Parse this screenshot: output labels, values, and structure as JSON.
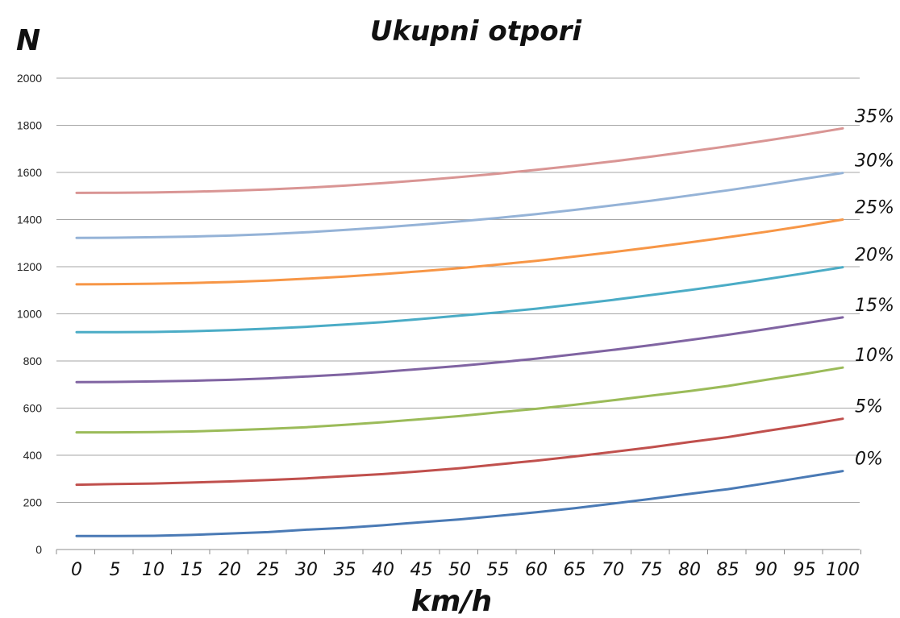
{
  "chart_data": {
    "type": "line",
    "title": "Ukupni otpori",
    "ylabel": "N",
    "xlabel": "km/h",
    "ylim": [
      0,
      2000
    ],
    "yticks": [
      0,
      200,
      400,
      600,
      800,
      1000,
      1200,
      1400,
      1600,
      1800,
      2000
    ],
    "grid": true,
    "legend": "inline labels at right end of lines",
    "x": [
      0,
      5,
      10,
      15,
      20,
      25,
      30,
      35,
      40,
      45,
      50,
      55,
      60,
      65,
      70,
      75,
      80,
      85,
      90,
      95,
      100
    ],
    "x_labels": [
      "0",
      "5",
      "10",
      "15",
      "20",
      "25",
      "30",
      "35",
      "40",
      "45",
      "50",
      "55",
      "60",
      "65",
      "70",
      "75",
      "80",
      "85",
      "90",
      "95",
      "100"
    ],
    "series": [
      {
        "name": "0%",
        "color": "#4a7ab5",
        "values": [
          57,
          57,
          58,
          62,
          68,
          74,
          84,
          92,
          103,
          116,
          128,
          143,
          158,
          175,
          195,
          215,
          236,
          256,
          281,
          307,
          333
        ]
      },
      {
        "name": "5%",
        "color": "#c0504d",
        "values": [
          275,
          278,
          280,
          284,
          289,
          295,
          302,
          311,
          320,
          332,
          345,
          361,
          377,
          395,
          414,
          434,
          456,
          477,
          503,
          528,
          555
        ]
      },
      {
        "name": "10%",
        "color": "#9bbb59",
        "values": [
          497,
          497,
          498,
          501,
          506,
          512,
          519,
          529,
          540,
          553,
          566,
          582,
          597,
          614,
          633,
          653,
          672,
          694,
          720,
          745,
          772
        ]
      },
      {
        "name": "15%",
        "color": "#8064a2",
        "values": [
          710,
          711,
          713,
          716,
          720,
          726,
          734,
          743,
          754,
          766,
          779,
          794,
          810,
          828,
          847,
          867,
          889,
          911,
          935,
          960,
          985
        ]
      },
      {
        "name": "20%",
        "color": "#4bacc6",
        "values": [
          922,
          922,
          923,
          926,
          931,
          937,
          945,
          955,
          965,
          978,
          992,
          1006,
          1022,
          1040,
          1059,
          1080,
          1101,
          1123,
          1147,
          1172,
          1198
        ]
      },
      {
        "name": "25%",
        "color": "#f79646",
        "values": [
          1125,
          1126,
          1128,
          1131,
          1135,
          1141,
          1149,
          1158,
          1169,
          1181,
          1194,
          1209,
          1225,
          1243,
          1262,
          1282,
          1303,
          1325,
          1348,
          1373,
          1400
        ]
      },
      {
        "name": "30%",
        "color": "#95b3d7",
        "values": [
          1322,
          1323,
          1325,
          1328,
          1332,
          1338,
          1346,
          1356,
          1367,
          1379,
          1392,
          1407,
          1423,
          1441,
          1460,
          1480,
          1502,
          1524,
          1548,
          1573,
          1598
        ]
      },
      {
        "name": "35%",
        "color": "#d99594",
        "values": [
          1513,
          1514,
          1515,
          1518,
          1522,
          1528,
          1535,
          1544,
          1555,
          1567,
          1580,
          1595,
          1611,
          1628,
          1647,
          1667,
          1689,
          1711,
          1735,
          1760,
          1787
        ]
      }
    ]
  }
}
